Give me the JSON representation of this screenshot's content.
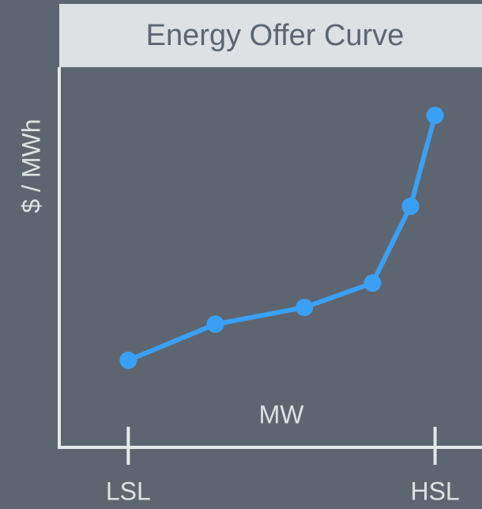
{
  "chart_data": {
    "type": "line",
    "title": "Energy Offer Curve",
    "x_label": "MW",
    "y_label": "$ / MWh",
    "x": [
      0,
      28.4,
      57.4,
      79.6,
      92,
      100
    ],
    "series": [
      {
        "color": "#3aa0f5",
        "values": [
          22.9,
          32.4,
          36.8,
          43.2,
          63.4,
          87.3
        ]
      }
    ],
    "xlim": [
      -22.5,
      115.3
    ],
    "xticks": [
      {
        "value": 0,
        "label": "LSL"
      },
      {
        "value": 100,
        "label": "HSL"
      }
    ],
    "ylim": [
      0,
      100
    ]
  }
}
